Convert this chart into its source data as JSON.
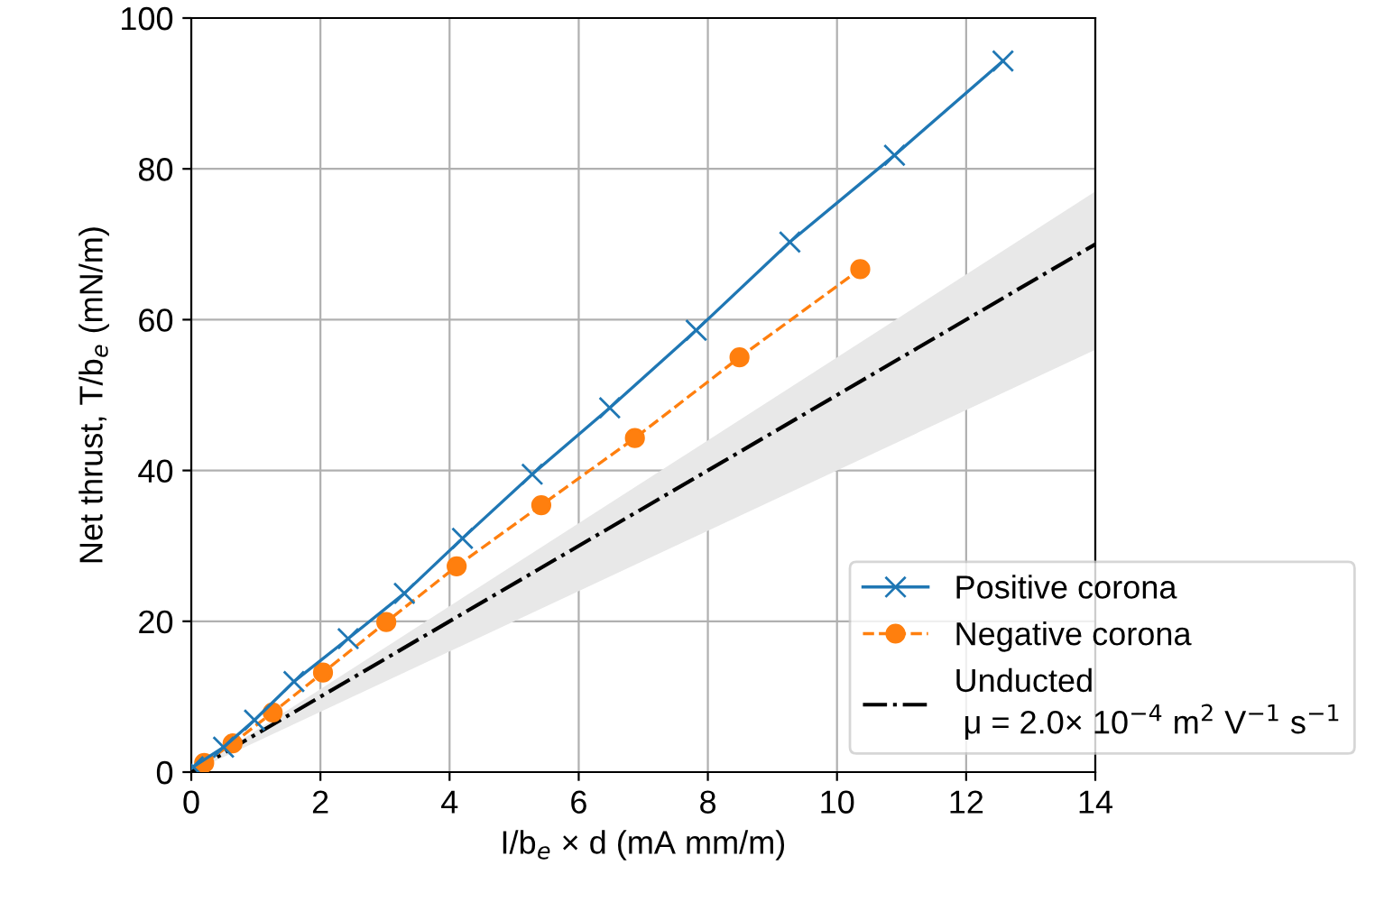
{
  "chart_data": {
    "type": "line",
    "xlabel": "I/b$_{e}$ × d (mA mm/m)",
    "ylabel": "Net thrust, T/b$_{e}$ (mN/m)",
    "xlim": [
      0,
      14
    ],
    "ylim": [
      0,
      100
    ],
    "xticks": [
      0,
      2,
      4,
      6,
      8,
      10,
      12,
      14
    ],
    "yticks": [
      0,
      20,
      40,
      60,
      80,
      100
    ],
    "grid": true,
    "legend": "bottom right",
    "series": [
      {
        "name": "Positive corona",
        "color": "#1f77b4",
        "marker": "cross",
        "line_style": "solid",
        "x": [
          0.03,
          0.5,
          0.98,
          1.59,
          2.43,
          3.3,
          4.2,
          5.28,
          6.48,
          7.82,
          9.27,
          10.89,
          12.57
        ],
        "values": [
          0.7,
          3.3,
          6.9,
          12.0,
          17.7,
          23.7,
          31.0,
          39.5,
          48.3,
          58.6,
          70.3,
          81.8,
          94.3
        ]
      },
      {
        "name": "Negative corona",
        "color": "#ff7f0e",
        "marker": "circle",
        "line_style": "dashed",
        "x": [
          0.2,
          0.64,
          1.26,
          2.04,
          3.02,
          4.11,
          5.42,
          6.87,
          8.49,
          10.36
        ],
        "values": [
          1.2,
          3.8,
          7.9,
          13.2,
          19.9,
          27.3,
          35.4,
          44.3,
          55.0,
          66.7
        ]
      },
      {
        "name": "Unducted\n μ = 2.0× 10$^{−4}$ m$^{2}$ V$^{−1}$ s$^{−1}$",
        "color": "#000000",
        "marker": "none",
        "line_style": "dashdot",
        "x": [
          0,
          14
        ],
        "values": [
          0,
          70
        ],
        "lower": [
          0,
          56
        ],
        "upper": [
          0,
          77
        ]
      }
    ]
  }
}
